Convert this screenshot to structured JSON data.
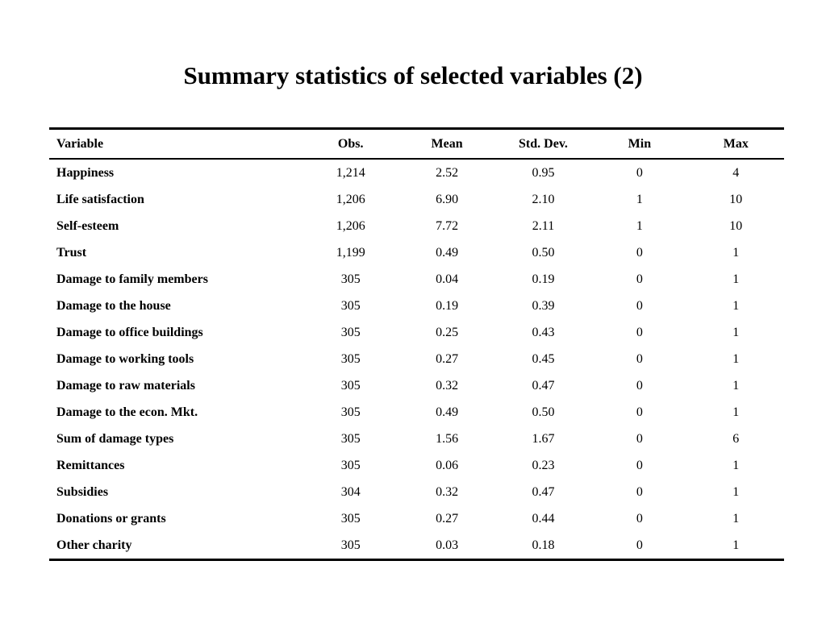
{
  "slide": {
    "title": "Summary statistics of selected variables (2)"
  },
  "table": {
    "headers": {
      "variable": "Variable",
      "obs": "Obs.",
      "mean": "Mean",
      "std_dev": "Std. Dev.",
      "min": "Min",
      "max": "Max"
    },
    "rows": [
      {
        "variable": "Happiness",
        "obs": "1,214",
        "mean": "2.52",
        "std_dev": "0.95",
        "min": "0",
        "max": "4"
      },
      {
        "variable": "Life satisfaction",
        "obs": "1,206",
        "mean": "6.90",
        "std_dev": "2.10",
        "min": "1",
        "max": "10"
      },
      {
        "variable": "Self-esteem",
        "obs": "1,206",
        "mean": "7.72",
        "std_dev": "2.11",
        "min": "1",
        "max": "10"
      },
      {
        "variable": "Trust",
        "obs": "1,199",
        "mean": "0.49",
        "std_dev": "0.50",
        "min": "0",
        "max": "1"
      },
      {
        "variable": "Damage to family members",
        "obs": "305",
        "mean": "0.04",
        "std_dev": "0.19",
        "min": "0",
        "max": "1"
      },
      {
        "variable": "Damage to the house",
        "obs": "305",
        "mean": "0.19",
        "std_dev": "0.39",
        "min": "0",
        "max": "1"
      },
      {
        "variable": "Damage to office buildings",
        "obs": "305",
        "mean": "0.25",
        "std_dev": "0.43",
        "min": "0",
        "max": "1"
      },
      {
        "variable": "Damage to working tools",
        "obs": "305",
        "mean": "0.27",
        "std_dev": "0.45",
        "min": "0",
        "max": "1"
      },
      {
        "variable": "Damage to raw materials",
        "obs": "305",
        "mean": "0.32",
        "std_dev": "0.47",
        "min": "0",
        "max": "1"
      },
      {
        "variable": "Damage to the econ. Mkt.",
        "obs": "305",
        "mean": "0.49",
        "std_dev": "0.50",
        "min": "0",
        "max": "1"
      },
      {
        "variable": "Sum of damage types",
        "obs": "305",
        "mean": "1.56",
        "std_dev": "1.67",
        "min": "0",
        "max": "6"
      },
      {
        "variable": "Remittances",
        "obs": "305",
        "mean": "0.06",
        "std_dev": "0.23",
        "min": "0",
        "max": "1"
      },
      {
        "variable": "Subsidies",
        "obs": "304",
        "mean": "0.32",
        "std_dev": "0.47",
        "min": "0",
        "max": "1"
      },
      {
        "variable": "Donations or grants",
        "obs": "305",
        "mean": "0.27",
        "std_dev": "0.44",
        "min": "0",
        "max": "1"
      },
      {
        "variable": "Other charity",
        "obs": "305",
        "mean": "0.03",
        "std_dev": "0.18",
        "min": "0",
        "max": "1"
      }
    ]
  }
}
